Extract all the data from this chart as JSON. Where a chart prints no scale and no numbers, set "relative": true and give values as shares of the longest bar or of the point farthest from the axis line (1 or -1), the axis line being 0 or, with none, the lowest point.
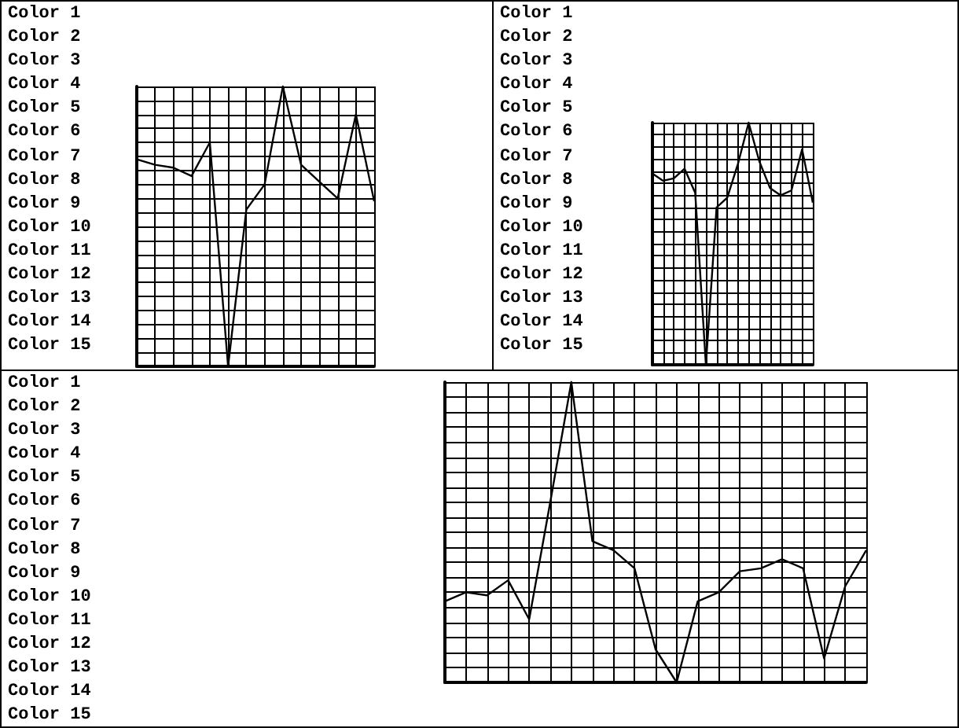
{
  "chart_data": [
    {
      "type": "line",
      "relative": true,
      "grid": true,
      "color": "#000000",
      "categories": [
        null,
        null,
        null,
        null,
        null,
        null,
        null,
        null,
        null,
        null,
        null,
        null,
        null,
        null
      ],
      "values": [
        0.74,
        0.72,
        0.71,
        0.68,
        0.8,
        0,
        0.56,
        0.65,
        1,
        0.72,
        0.66,
        0.6,
        0.9,
        0.59
      ],
      "annotations": [
        "Color 1",
        "Color 2",
        "Color 3",
        "Color 4",
        "Color 5",
        "Color 6",
        "Color 7",
        "Color 8",
        "Color 9",
        "Color 10",
        "Color 11",
        "Color 12",
        "Color 13",
        "Color 14",
        "Color 15"
      ]
    },
    {
      "type": "line",
      "relative": true,
      "grid": true,
      "color": "#000000",
      "categories": [
        null,
        null,
        null,
        null,
        null,
        null,
        null,
        null,
        null,
        null,
        null,
        null,
        null,
        null,
        null,
        null
      ],
      "values": [
        0.79,
        0.76,
        0.77,
        0.81,
        0.71,
        0,
        0.65,
        0.69,
        0.83,
        1,
        0.84,
        0.73,
        0.7,
        0.72,
        0.89,
        0.67
      ],
      "annotations": [
        "Color 1",
        "Color 2",
        "Color 3",
        "Color 4",
        "Color 5",
        "Color 6",
        "Color 7",
        "Color 8",
        "Color 9",
        "Color 10",
        "Color 11",
        "Color 12",
        "Color 13",
        "Color 14",
        "Color 15"
      ]
    },
    {
      "type": "line",
      "relative": true,
      "grid": true,
      "color": "#000000",
      "categories": [
        null,
        null,
        null,
        null,
        null,
        null,
        null,
        null,
        null,
        null,
        null,
        null,
        null,
        null,
        null,
        null,
        null,
        null,
        null,
        null,
        null
      ],
      "values": [
        0.27,
        0.3,
        0.29,
        0.34,
        0.21,
        0.6,
        1,
        0.47,
        0.44,
        0.38,
        0.11,
        0,
        0.27,
        0.3,
        0.37,
        0.38,
        0.41,
        0.38,
        0.08,
        0.32,
        0.44
      ],
      "annotations": [
        "Color 1",
        "Color 2",
        "Color 3",
        "Color 4",
        "Color 5",
        "Color 6",
        "Color 7",
        "Color 8",
        "Color 9",
        "Color 10",
        "Color 11",
        "Color 12",
        "Color 13",
        "Color 14",
        "Color 15"
      ]
    }
  ]
}
